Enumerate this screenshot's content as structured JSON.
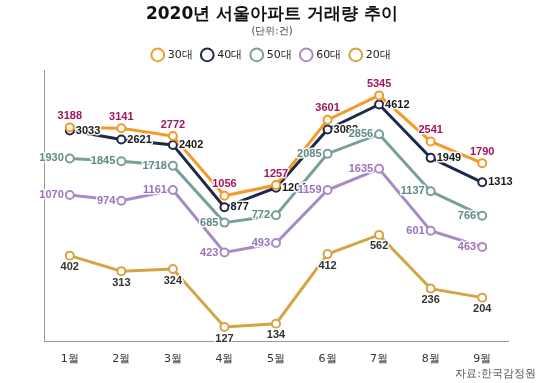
{
  "chart_data": {
    "type": "line",
    "title": "2020년 서울아파트 거래량 추이",
    "subtitle": "(단위:건)",
    "source": "자료:한국감정원",
    "categories": [
      "1월",
      "2월",
      "3월",
      "4월",
      "5월",
      "6월",
      "7월",
      "8월",
      "9월"
    ],
    "series": [
      {
        "name": "30대",
        "color": "#f39a2b",
        "values": [
          3188,
          3141,
          2772,
          1056,
          1257,
          3601,
          5345,
          2541,
          1790
        ]
      },
      {
        "name": "40대",
        "color": "#1f2a4a",
        "values": [
          3033,
          2621,
          2402,
          877,
          1204,
          3082,
          4612,
          1949,
          1313
        ]
      },
      {
        "name": "50대",
        "color": "#7a9e9a",
        "values": [
          1930,
          1845,
          1718,
          685,
          772,
          2085,
          2856,
          1137,
          766
        ]
      },
      {
        "name": "60대",
        "color": "#a98bc4",
        "values": [
          1070,
          974,
          1161,
          423,
          493,
          1159,
          1635,
          601,
          463
        ]
      },
      {
        "name": "20대",
        "color": "#d3a545",
        "values": [
          402,
          313,
          324,
          127,
          134,
          412,
          562,
          236,
          204
        ]
      }
    ],
    "ylim": [
      100,
      8000
    ],
    "yticks": [],
    "log": "y",
    "grid": false,
    "legend": "top",
    "data_labels": true,
    "tick_labels": "x",
    "marker": "circle"
  }
}
